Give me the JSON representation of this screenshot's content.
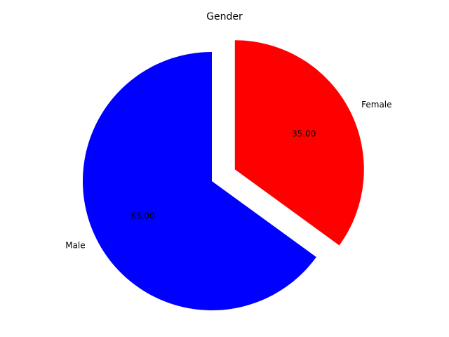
{
  "chart_data": {
    "type": "pie",
    "title": "Gender",
    "slices": [
      {
        "label": "Male",
        "value": 65.0,
        "pct_label": "65.00",
        "color": "#0000ff",
        "exploded": false
      },
      {
        "label": "Female",
        "value": 35.0,
        "pct_label": "35.00",
        "color": "#ff0000",
        "exploded": true
      }
    ],
    "start_angle_deg": 90,
    "direction": "counterclockwise"
  }
}
